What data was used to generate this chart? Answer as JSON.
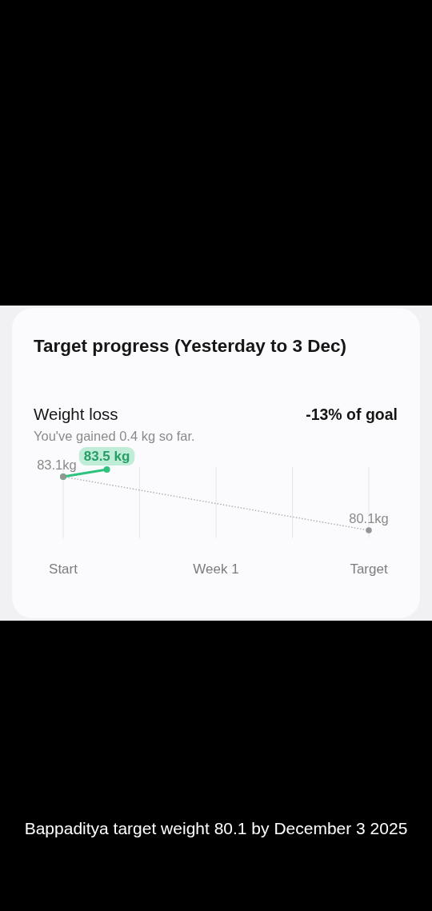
{
  "chart_data": {
    "type": "line",
    "title": "Target progress (Yesterday to 3 Dec)",
    "subtitle": "Weight loss",
    "annotations": [
      "You've gained 0.4 kg so far.",
      "-13% of goal",
      "Bappaditya target weight 80.1 by December 3 2025"
    ],
    "categories": [
      "Start",
      null,
      null,
      null,
      null,
      null,
      null,
      "Week 1",
      null,
      null,
      null,
      null,
      null,
      null,
      "Target"
    ],
    "tick_labels": "x",
    "grid": "x",
    "marker": "circle",
    "series": [
      {
        "color": "#959595",
        "values": [
          83.1,
          null,
          null,
          null,
          null,
          null,
          null,
          null,
          null,
          null,
          null,
          null,
          null,
          null,
          80.1
        ],
        "line_style": "dotted",
        "value_labels": [
          "83.1kg",
          null,
          null,
          null,
          null,
          null,
          null,
          null,
          null,
          null,
          null,
          null,
          null,
          null,
          "80.1kg"
        ]
      },
      {
        "color": "#2ec27e",
        "values": [
          83.1,
          null,
          83.5,
          null,
          null,
          null,
          null,
          null,
          null,
          null,
          null,
          null,
          null,
          null,
          null
        ],
        "line_style": "solid",
        "value_labels": [
          null,
          null,
          "83.5 kg",
          null,
          null,
          null,
          null,
          null,
          null,
          null,
          null,
          null,
          null,
          null,
          null
        ]
      }
    ]
  }
}
